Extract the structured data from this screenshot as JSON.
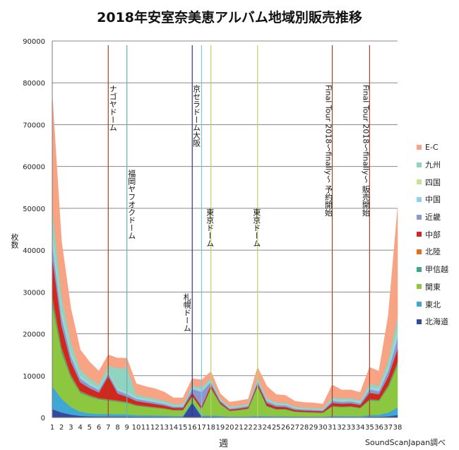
{
  "chart_data": {
    "type": "area",
    "stacked": true,
    "title": "2018年安室奈美恵アルバム地域別販売推移",
    "xlabel": "週",
    "ylabel": "枚数",
    "source": "SoundScanJapan調べ",
    "ylim": [
      0,
      90000
    ],
    "yticks": [
      0,
      10000,
      20000,
      30000,
      40000,
      50000,
      60000,
      70000,
      80000,
      90000
    ],
    "grid": true,
    "legend_position": "right",
    "categories": [
      "1",
      "2",
      "3",
      "4",
      "5",
      "6",
      "7",
      "8",
      "9",
      "10",
      "11",
      "12",
      "13",
      "14",
      "15",
      "16",
      "17",
      "18",
      "19",
      "20",
      "21",
      "22",
      "23",
      "24",
      "25",
      "26",
      "27",
      "28",
      "29",
      "30",
      "31",
      "32",
      "33",
      "34",
      "35",
      "36",
      "37",
      "38"
    ],
    "series": [
      {
        "name": "北海道",
        "color": "#344a9e",
        "values": [
          2000,
          1200,
          700,
          400,
          300,
          250,
          250,
          250,
          250,
          200,
          200,
          180,
          170,
          150,
          150,
          3500,
          200,
          200,
          150,
          100,
          100,
          100,
          150,
          120,
          110,
          110,
          100,
          100,
          90,
          90,
          150,
          130,
          130,
          120,
          200,
          200,
          300,
          600
        ]
      },
      {
        "name": "東北",
        "color": "#3fa7d6",
        "values": [
          5500,
          3300,
          1800,
          1000,
          700,
          600,
          600,
          550,
          500,
          400,
          350,
          330,
          300,
          250,
          250,
          250,
          250,
          300,
          250,
          150,
          150,
          170,
          250,
          220,
          200,
          200,
          150,
          150,
          140,
          130,
          250,
          230,
          230,
          200,
          400,
          450,
          900,
          1800
        ]
      },
      {
        "name": "関東",
        "color": "#8dc63f",
        "values": [
          19500,
          11000,
          7000,
          4500,
          4000,
          3500,
          3200,
          3000,
          2700,
          2200,
          2000,
          1800,
          1600,
          1300,
          1300,
          1300,
          1500,
          6500,
          2800,
          1300,
          1500,
          1800,
          7000,
          2300,
          1600,
          1600,
          1100,
          1000,
          950,
          900,
          2200,
          2100,
          2200,
          1900,
          3500,
          3300,
          6000,
          10000
        ]
      },
      {
        "name": "甲信越",
        "color": "#3aa88a",
        "values": [
          1500,
          900,
          500,
          300,
          250,
          200,
          200,
          200,
          200,
          150,
          150,
          140,
          130,
          100,
          100,
          100,
          100,
          150,
          100,
          70,
          70,
          80,
          150,
          120,
          100,
          100,
          80,
          70,
          70,
          60,
          130,
          120,
          120,
          110,
          200,
          200,
          400,
          700
        ]
      },
      {
        "name": "北陸",
        "color": "#e36c1f",
        "values": [
          800,
          500,
          300,
          200,
          150,
          120,
          150,
          130,
          120,
          100,
          90,
          80,
          70,
          60,
          60,
          60,
          60,
          80,
          60,
          40,
          40,
          50,
          80,
          70,
          60,
          60,
          50,
          40,
          40,
          40,
          80,
          70,
          70,
          60,
          100,
          100,
          200,
          300
        ]
      },
      {
        "name": "中部",
        "color": "#d0281d",
        "values": [
          9000,
          5000,
          3000,
          2000,
          1600,
          1300,
          5500,
          1600,
          1200,
          900,
          800,
          700,
          600,
          450,
          450,
          700,
          500,
          600,
          350,
          250,
          280,
          300,
          500,
          600,
          500,
          450,
          350,
          300,
          300,
          280,
          700,
          650,
          650,
          600,
          1500,
          1300,
          2000,
          3000
        ]
      },
      {
        "name": "近畿",
        "color": "#8e95cf",
        "values": [
          3000,
          2000,
          1300,
          900,
          700,
          600,
          600,
          700,
          600,
          500,
          450,
          420,
          380,
          300,
          300,
          900,
          3500,
          700,
          350,
          250,
          280,
          300,
          600,
          500,
          400,
          400,
          300,
          280,
          270,
          250,
          500,
          450,
          450,
          400,
          800,
          700,
          1300,
          2500
        ]
      },
      {
        "name": "中国",
        "color": "#8fd0ec",
        "values": [
          2000,
          1200,
          800,
          500,
          400,
          350,
          350,
          400,
          350,
          300,
          280,
          260,
          240,
          200,
          200,
          250,
          400,
          300,
          200,
          150,
          150,
          160,
          300,
          250,
          200,
          200,
          160,
          150,
          150,
          140,
          300,
          270,
          270,
          250,
          500,
          450,
          800,
          1500
        ]
      },
      {
        "name": "四国",
        "color": "#c5e29a",
        "values": [
          900,
          500,
          300,
          200,
          150,
          130,
          150,
          150,
          150,
          100,
          100,
          90,
          80,
          70,
          70,
          80,
          100,
          100,
          70,
          50,
          50,
          60,
          100,
          80,
          70,
          70,
          60,
          50,
          50,
          50,
          100,
          90,
          90,
          80,
          150,
          150,
          300,
          500
        ]
      },
      {
        "name": "九州",
        "color": "#8fd3c0",
        "values": [
          6000,
          3500,
          2300,
          1500,
          1100,
          900,
          1500,
          4800,
          5800,
          700,
          600,
          550,
          500,
          400,
          400,
          500,
          600,
          500,
          300,
          250,
          250,
          280,
          500,
          400,
          350,
          350,
          280,
          250,
          240,
          220,
          500,
          450,
          450,
          400,
          800,
          700,
          1500,
          3000
        ]
      },
      {
        "name": "E-C",
        "color": "#f7a384",
        "values": [
          26800,
          12900,
          8000,
          4700,
          3950,
          3150,
          2500,
          2420,
          2330,
          2550,
          2380,
          2350,
          2030,
          1420,
          1420,
          1660,
          1790,
          1570,
          1070,
          1090,
          1130,
          1100,
          2370,
          2840,
          1910,
          1760,
          1270,
          1210,
          1200,
          1040,
          2890,
          2040,
          1940,
          1880,
          3850,
          3550,
          10600,
          26100
        ]
      }
    ],
    "annotations": [
      {
        "week": 7,
        "label": "ナゴヤドーム",
        "color": "#a0442c"
      },
      {
        "week": 9,
        "label": "福岡ヤフオクドーム",
        "color": "#5fb3b3"
      },
      {
        "week": 16,
        "label": "札幌ドーム",
        "color": "#2e3a7a"
      },
      {
        "week": 17,
        "label": "京セラドーム大阪",
        "color": "#7fbfe0"
      },
      {
        "week": 18,
        "label": "東京ドーム",
        "color": "#bcd36a"
      },
      {
        "week": 23,
        "label": "東京ドーム",
        "color": "#bcd36a"
      },
      {
        "week": 31,
        "label": "Final Tour 2018～finally～ 予約開始",
        "color": "#a0442c"
      },
      {
        "week": 35,
        "label": "Final Tour 2018～finally～ 販売開始",
        "color": "#a0442c"
      }
    ]
  }
}
